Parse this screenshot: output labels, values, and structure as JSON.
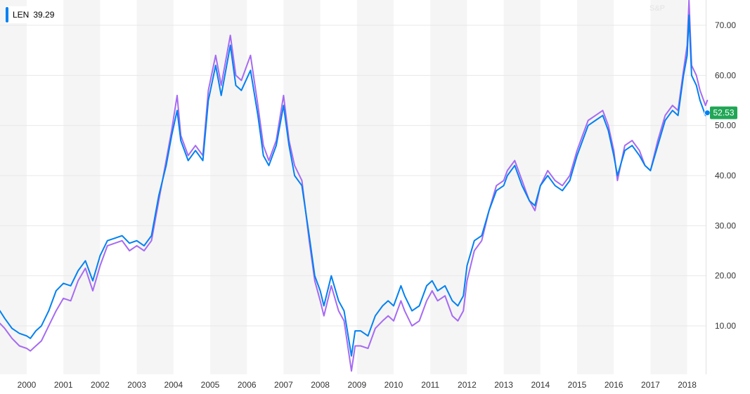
{
  "legend": {
    "symbol": "LEN",
    "value": "39.29"
  },
  "faint_label": "S&P",
  "colors": {
    "primary": "#0081f2",
    "comparison": "#a66af2",
    "last_price_bg": "#21a656",
    "band": "#f5f5f5"
  },
  "last_price": {
    "label": "52.53",
    "value": 52.53
  },
  "chart_data": {
    "type": "line",
    "title": "",
    "xlabel": "",
    "ylabel": "",
    "x_ticks": [
      "2000",
      "2001",
      "2002",
      "2003",
      "2004",
      "2005",
      "2006",
      "2007",
      "2008",
      "2009",
      "2010",
      "2011",
      "2012",
      "2013",
      "2014",
      "2015",
      "2016",
      "2017",
      "2018"
    ],
    "y_ticks": [
      "10.00",
      "20.00",
      "30.00",
      "40.00",
      "50.00",
      "60.00",
      "70.00"
    ],
    "ylim": [
      0,
      75
    ],
    "xlim": [
      1999.27,
      2018.66
    ],
    "year_bands": "alternating grey/white, one per year",
    "grid": "horizontal",
    "series": [
      {
        "name": "LEN",
        "color": "#0081f2",
        "points": [
          [
            1999.27,
            13.0
          ],
          [
            1999.4,
            11.5
          ],
          [
            1999.6,
            9.5
          ],
          [
            1999.8,
            8.5
          ],
          [
            2000.0,
            8.0
          ],
          [
            2000.1,
            7.5
          ],
          [
            2000.25,
            9.0
          ],
          [
            2000.4,
            10.0
          ],
          [
            2000.6,
            13.0
          ],
          [
            2000.8,
            17.0
          ],
          [
            2001.0,
            18.5
          ],
          [
            2001.2,
            18.0
          ],
          [
            2001.4,
            21.0
          ],
          [
            2001.6,
            23.0
          ],
          [
            2001.8,
            19.0
          ],
          [
            2002.0,
            24.0
          ],
          [
            2002.2,
            27.0
          ],
          [
            2002.4,
            27.5
          ],
          [
            2002.6,
            28.0
          ],
          [
            2002.8,
            26.5
          ],
          [
            2003.0,
            27.0
          ],
          [
            2003.2,
            26.0
          ],
          [
            2003.4,
            28.0
          ],
          [
            2003.6,
            36.0
          ],
          [
            2003.8,
            42.0
          ],
          [
            2003.95,
            48.0
          ],
          [
            2004.1,
            53.0
          ],
          [
            2004.2,
            47.0
          ],
          [
            2004.4,
            43.0
          ],
          [
            2004.6,
            45.0
          ],
          [
            2004.8,
            43.0
          ],
          [
            2004.95,
            55.0
          ],
          [
            2005.15,
            62.0
          ],
          [
            2005.3,
            56.0
          ],
          [
            2005.55,
            66.0
          ],
          [
            2005.7,
            58.0
          ],
          [
            2005.85,
            57.0
          ],
          [
            2006.1,
            61.0
          ],
          [
            2006.3,
            52.0
          ],
          [
            2006.45,
            44.0
          ],
          [
            2006.6,
            42.0
          ],
          [
            2006.8,
            46.0
          ],
          [
            2007.0,
            54.0
          ],
          [
            2007.15,
            46.0
          ],
          [
            2007.3,
            40.0
          ],
          [
            2007.5,
            38.0
          ],
          [
            2007.7,
            28.0
          ],
          [
            2007.85,
            20.0
          ],
          [
            2008.0,
            17.0
          ],
          [
            2008.1,
            14.0
          ],
          [
            2008.3,
            20.0
          ],
          [
            2008.5,
            15.0
          ],
          [
            2008.65,
            13.0
          ],
          [
            2008.85,
            4.0
          ],
          [
            2008.95,
            9.0
          ],
          [
            2009.1,
            9.0
          ],
          [
            2009.3,
            8.0
          ],
          [
            2009.5,
            12.0
          ],
          [
            2009.7,
            14.0
          ],
          [
            2009.85,
            15.0
          ],
          [
            2010.0,
            14.0
          ],
          [
            2010.2,
            18.0
          ],
          [
            2010.3,
            16.0
          ],
          [
            2010.5,
            13.0
          ],
          [
            2010.7,
            14.0
          ],
          [
            2010.9,
            18.0
          ],
          [
            2011.05,
            19.0
          ],
          [
            2011.2,
            17.0
          ],
          [
            2011.4,
            18.0
          ],
          [
            2011.6,
            15.0
          ],
          [
            2011.75,
            14.0
          ],
          [
            2011.9,
            16.0
          ],
          [
            2012.0,
            22.0
          ],
          [
            2012.2,
            27.0
          ],
          [
            2012.4,
            28.0
          ],
          [
            2012.6,
            33.0
          ],
          [
            2012.8,
            37.0
          ],
          [
            2013.0,
            38.0
          ],
          [
            2013.1,
            40.0
          ],
          [
            2013.3,
            42.0
          ],
          [
            2013.5,
            38.0
          ],
          [
            2013.7,
            35.0
          ],
          [
            2013.85,
            34.0
          ],
          [
            2014.0,
            38.0
          ],
          [
            2014.2,
            40.0
          ],
          [
            2014.4,
            38.0
          ],
          [
            2014.6,
            37.0
          ],
          [
            2014.8,
            39.0
          ],
          [
            2015.0,
            44.0
          ],
          [
            2015.15,
            47.0
          ],
          [
            2015.3,
            50.0
          ],
          [
            2015.5,
            51.0
          ],
          [
            2015.7,
            52.0
          ],
          [
            2015.85,
            49.0
          ],
          [
            2016.0,
            44.0
          ],
          [
            2016.1,
            40.0
          ],
          [
            2016.3,
            45.0
          ],
          [
            2016.5,
            46.0
          ],
          [
            2016.7,
            44.0
          ],
          [
            2016.85,
            42.0
          ],
          [
            2017.0,
            41.0
          ],
          [
            2017.2,
            46.0
          ],
          [
            2017.4,
            51.0
          ],
          [
            2017.6,
            53.0
          ],
          [
            2017.75,
            52.0
          ],
          [
            2017.9,
            60.0
          ],
          [
            2018.0,
            64.0
          ],
          [
            2018.05,
            72.0
          ],
          [
            2018.12,
            60.0
          ],
          [
            2018.25,
            58.0
          ],
          [
            2018.35,
            55.0
          ],
          [
            2018.5,
            52.0
          ],
          [
            2018.55,
            52.53
          ]
        ]
      },
      {
        "name": "",
        "color": "#a66af2",
        "points": [
          [
            1999.27,
            10.5
          ],
          [
            1999.4,
            9.5
          ],
          [
            1999.6,
            7.5
          ],
          [
            1999.8,
            6.0
          ],
          [
            2000.0,
            5.5
          ],
          [
            2000.1,
            5.0
          ],
          [
            2000.25,
            6.0
          ],
          [
            2000.4,
            7.0
          ],
          [
            2000.6,
            10.0
          ],
          [
            2000.8,
            13.0
          ],
          [
            2001.0,
            15.5
          ],
          [
            2001.2,
            15.0
          ],
          [
            2001.4,
            19.0
          ],
          [
            2001.6,
            21.5
          ],
          [
            2001.8,
            17.0
          ],
          [
            2002.0,
            22.0
          ],
          [
            2002.2,
            26.0
          ],
          [
            2002.4,
            26.5
          ],
          [
            2002.6,
            27.0
          ],
          [
            2002.8,
            25.0
          ],
          [
            2003.0,
            26.0
          ],
          [
            2003.2,
            25.0
          ],
          [
            2003.4,
            27.0
          ],
          [
            2003.6,
            35.0
          ],
          [
            2003.8,
            43.0
          ],
          [
            2003.95,
            49.0
          ],
          [
            2004.1,
            56.0
          ],
          [
            2004.2,
            48.0
          ],
          [
            2004.4,
            44.0
          ],
          [
            2004.6,
            46.0
          ],
          [
            2004.8,
            44.0
          ],
          [
            2004.95,
            57.0
          ],
          [
            2005.15,
            64.0
          ],
          [
            2005.3,
            58.0
          ],
          [
            2005.55,
            68.0
          ],
          [
            2005.7,
            60.0
          ],
          [
            2005.85,
            59.0
          ],
          [
            2006.1,
            64.0
          ],
          [
            2006.3,
            54.0
          ],
          [
            2006.45,
            46.0
          ],
          [
            2006.6,
            43.0
          ],
          [
            2006.8,
            47.0
          ],
          [
            2007.0,
            56.0
          ],
          [
            2007.15,
            47.0
          ],
          [
            2007.3,
            42.0
          ],
          [
            2007.5,
            39.0
          ],
          [
            2007.7,
            27.0
          ],
          [
            2007.85,
            19.0
          ],
          [
            2008.0,
            15.0
          ],
          [
            2008.1,
            12.0
          ],
          [
            2008.3,
            18.0
          ],
          [
            2008.5,
            13.0
          ],
          [
            2008.65,
            11.0
          ],
          [
            2008.85,
            1.0
          ],
          [
            2008.95,
            6.0
          ],
          [
            2009.1,
            6.0
          ],
          [
            2009.3,
            5.5
          ],
          [
            2009.5,
            9.5
          ],
          [
            2009.7,
            11.0
          ],
          [
            2009.85,
            12.0
          ],
          [
            2010.0,
            11.0
          ],
          [
            2010.2,
            15.0
          ],
          [
            2010.3,
            13.0
          ],
          [
            2010.5,
            10.0
          ],
          [
            2010.7,
            11.0
          ],
          [
            2010.9,
            15.0
          ],
          [
            2011.05,
            17.0
          ],
          [
            2011.2,
            15.0
          ],
          [
            2011.4,
            16.0
          ],
          [
            2011.6,
            12.0
          ],
          [
            2011.75,
            11.0
          ],
          [
            2011.9,
            13.0
          ],
          [
            2012.0,
            19.0
          ],
          [
            2012.2,
            25.0
          ],
          [
            2012.4,
            27.0
          ],
          [
            2012.6,
            33.0
          ],
          [
            2012.8,
            38.0
          ],
          [
            2013.0,
            39.0
          ],
          [
            2013.1,
            41.0
          ],
          [
            2013.3,
            43.0
          ],
          [
            2013.5,
            39.0
          ],
          [
            2013.7,
            35.0
          ],
          [
            2013.85,
            33.0
          ],
          [
            2014.0,
            38.0
          ],
          [
            2014.2,
            41.0
          ],
          [
            2014.4,
            39.0
          ],
          [
            2014.6,
            38.0
          ],
          [
            2014.8,
            40.0
          ],
          [
            2015.0,
            45.0
          ],
          [
            2015.15,
            48.0
          ],
          [
            2015.3,
            51.0
          ],
          [
            2015.5,
            52.0
          ],
          [
            2015.7,
            53.0
          ],
          [
            2015.85,
            50.0
          ],
          [
            2016.0,
            45.0
          ],
          [
            2016.1,
            39.0
          ],
          [
            2016.3,
            46.0
          ],
          [
            2016.5,
            47.0
          ],
          [
            2016.7,
            45.0
          ],
          [
            2016.85,
            42.0
          ],
          [
            2017.0,
            41.0
          ],
          [
            2017.2,
            47.0
          ],
          [
            2017.4,
            52.0
          ],
          [
            2017.6,
            54.0
          ],
          [
            2017.75,
            53.0
          ],
          [
            2017.9,
            61.0
          ],
          [
            2018.0,
            66.0
          ],
          [
            2018.05,
            75.0
          ],
          [
            2018.12,
            62.0
          ],
          [
            2018.25,
            60.0
          ],
          [
            2018.35,
            57.0
          ],
          [
            2018.5,
            54.0
          ],
          [
            2018.55,
            55.0
          ]
        ]
      }
    ]
  }
}
